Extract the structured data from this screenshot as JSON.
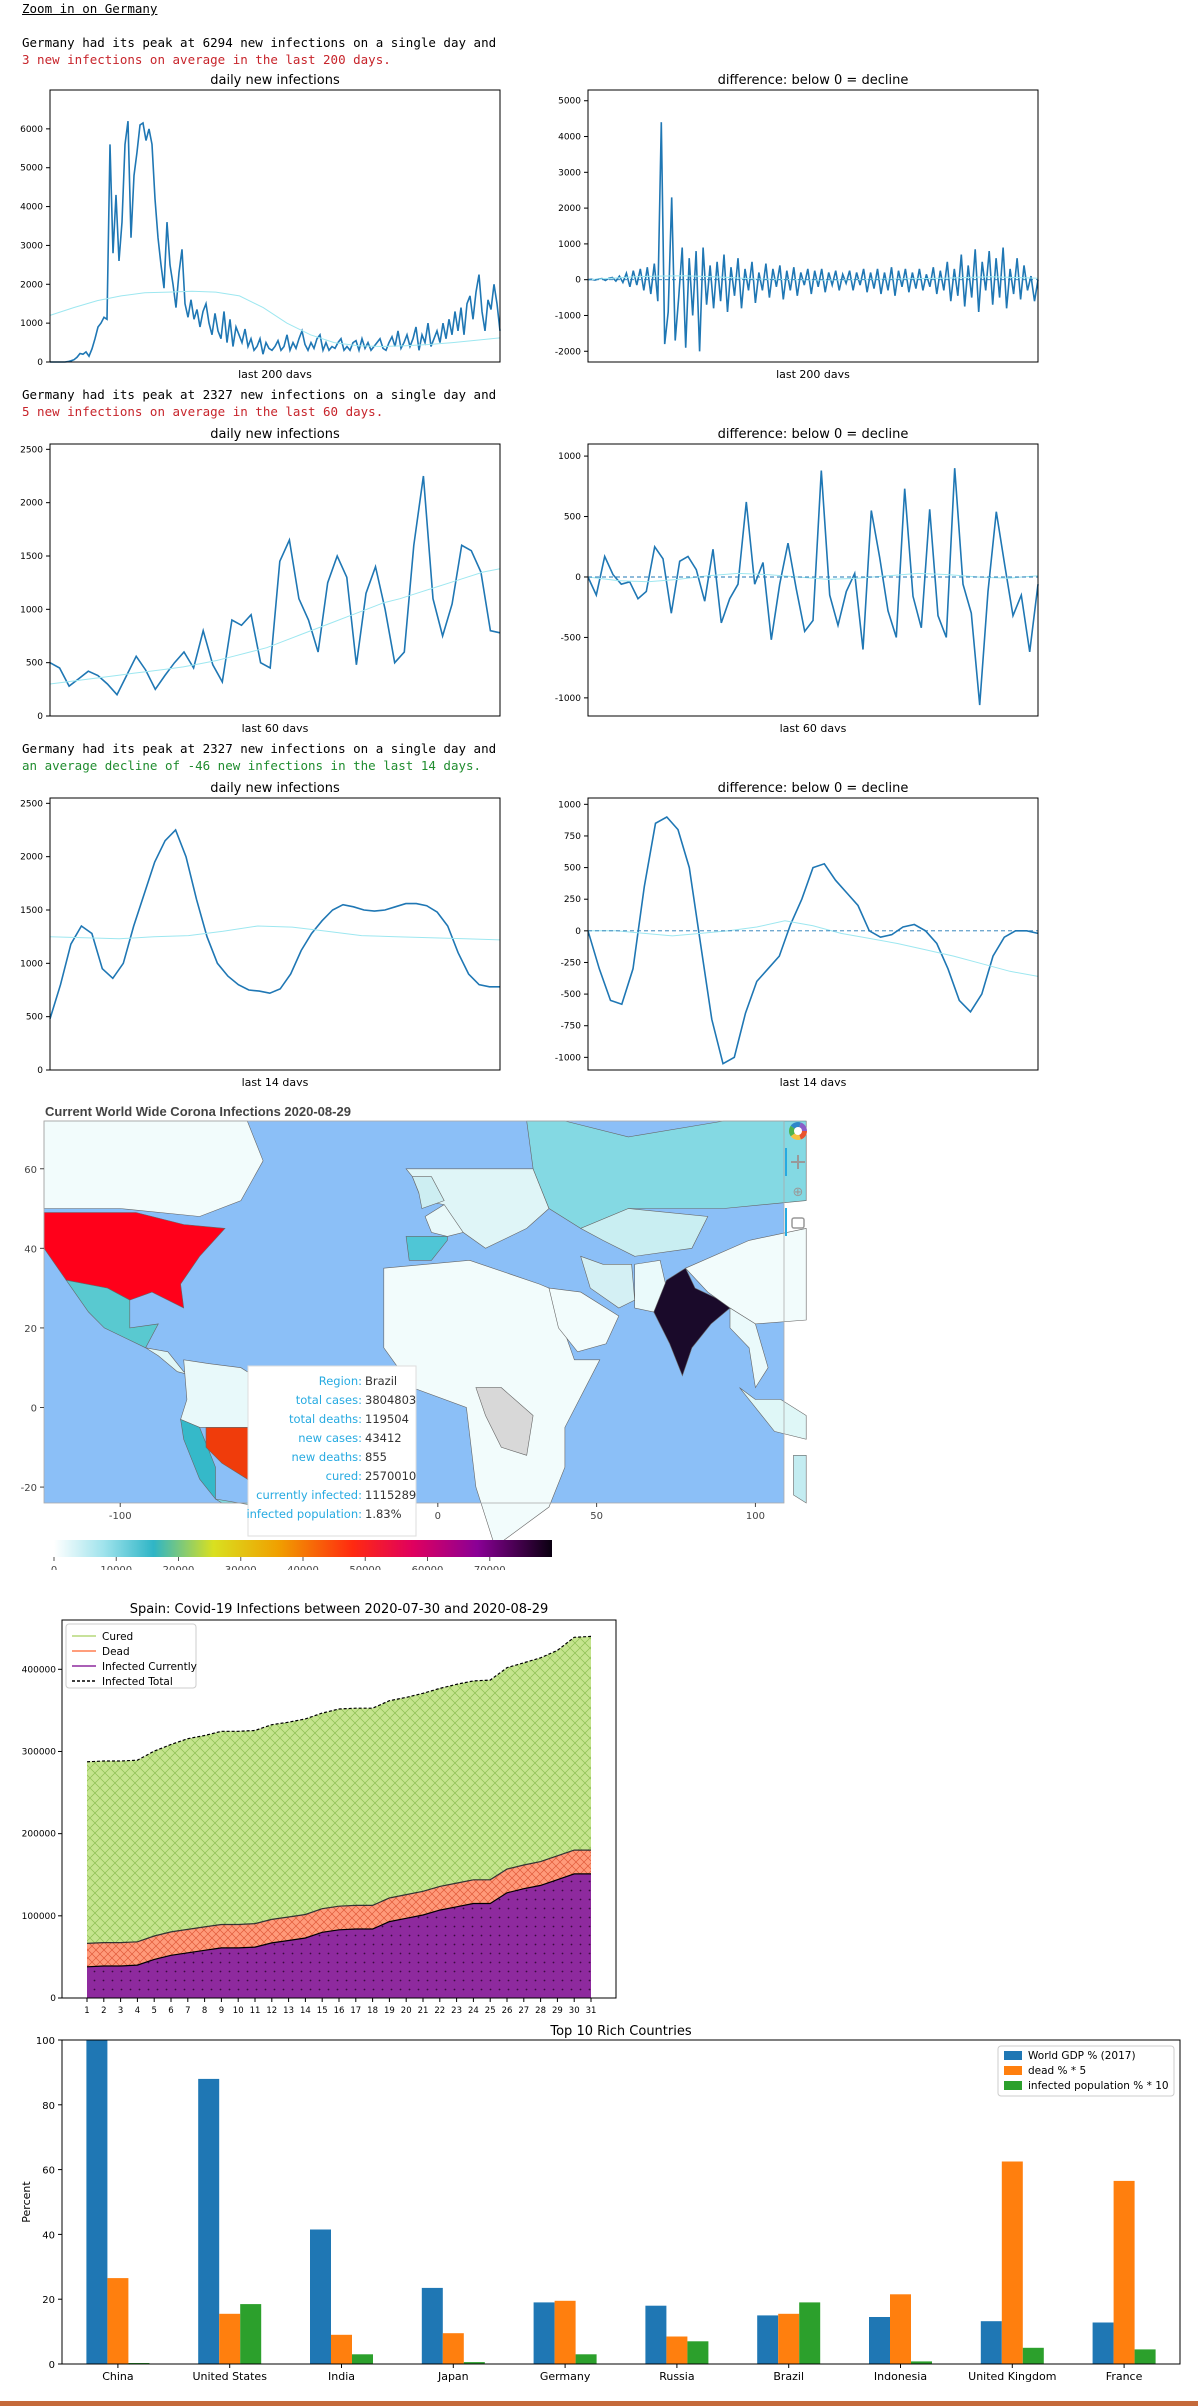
{
  "notebook": {
    "heading": "Zoom in on Germany",
    "blocks": [
      {
        "line1": "Germany had its peak at 6294 new infections on a single day and",
        "line2": "3 new infections on average in the last 200 days.",
        "line2_color": "red"
      },
      {
        "line1": "Germany had its peak at 2327 new infections on a single day and",
        "line2": "5 new infections on average in the last 60 days.",
        "line2_color": "red"
      },
      {
        "line1": "Germany had its peak at 2327 new infections on a single day and",
        "line2": "an average decline of -46 new infections in the last 14 days.",
        "line2_color": "green"
      }
    ]
  },
  "colors": {
    "blue": "#1f77b4",
    "cyan": "#9de7f0",
    "orange": "#ff7f0e",
    "green": "#2ca02c",
    "red_text": "#c7242b",
    "green_text": "#1f8c2e"
  },
  "chart_data": [
    {
      "id": "d200",
      "type": "line",
      "title": "daily new infections",
      "xlabel": "last 200 days",
      "ylabel": "",
      "ylim": [
        0,
        7000
      ],
      "yticks": [
        0,
        1000,
        2000,
        3000,
        4000,
        5000,
        6000
      ],
      "series": [
        {
          "values": [
            0,
            0,
            0,
            0,
            0,
            0,
            10,
            30,
            60,
            120,
            220,
            200,
            260,
            150,
            340,
            600,
            900,
            1000,
            1150,
            1100,
            5600,
            2800,
            4300,
            2600,
            3600,
            5600,
            6200,
            3200,
            4800,
            5400,
            6100,
            6150,
            5700,
            6000,
            5600,
            4200,
            3200,
            2500,
            1900,
            3600,
            2500,
            2000,
            1400,
            2300,
            2900,
            1500,
            1150,
            1600,
            1100,
            1350,
            900,
            1300,
            1500,
            1000,
            700,
            1250,
            800,
            600,
            1300,
            500,
            1100,
            400,
            900,
            700,
            500,
            850,
            400,
            600,
            300,
            400,
            600,
            200,
            500,
            350,
            300,
            400,
            550,
            300,
            400,
            700,
            300,
            500,
            350,
            600,
            800,
            450,
            300,
            500,
            350,
            600,
            700,
            300,
            500,
            300,
            400,
            350,
            500,
            600,
            300,
            400,
            300,
            500,
            550,
            300,
            600,
            350,
            500,
            300,
            400,
            500,
            600,
            350,
            300,
            500,
            650,
            400,
            800,
            350,
            500,
            700,
            400,
            600,
            900,
            300,
            700,
            500,
            1000,
            400,
            600,
            800,
            500,
            1000,
            600,
            1100,
            700,
            1300,
            800,
            1400,
            700,
            1500,
            1700,
            1100,
            1800,
            2250,
            1300,
            800,
            1600,
            1350,
            2000,
            1500,
            800
          ]
        },
        {
          "values": [
            1200,
            1400,
            1580,
            1700,
            1780,
            1800,
            1820,
            1800,
            1700,
            1400,
            1000,
            700,
            500,
            420,
            400,
            420,
            450,
            500,
            560,
            620
          ]
        }
      ]
    },
    {
      "id": "x200",
      "type": "line",
      "title": "difference: below 0 = decline",
      "xlabel": "last 200 days",
      "ylabel": "",
      "ylim": [
        -2300,
        5300
      ],
      "yticks": [
        -2000,
        -1000,
        0,
        1000,
        2000,
        3000,
        4000,
        5000
      ],
      "series": [
        {
          "values": [
            0,
            10,
            -10,
            20,
            30,
            -20,
            40,
            60,
            -40,
            100,
            -80,
            180,
            -200,
            250,
            -150,
            300,
            -300,
            350,
            -400,
            450,
            -600,
            4400,
            -1800,
            -900,
            2300,
            -1700,
            -500,
            900,
            -1900,
            600,
            -1000,
            800,
            -2000,
            900,
            -700,
            400,
            -800,
            500,
            -600,
            700,
            -900,
            350,
            -450,
            600,
            -800,
            300,
            -300,
            500,
            -650,
            200,
            -300,
            450,
            -500,
            300,
            -200,
            400,
            -550,
            250,
            -300,
            350,
            -450,
            200,
            -150,
            300,
            -400,
            250,
            -200,
            300,
            -350,
            200,
            -150,
            250,
            -300,
            150,
            -100,
            250,
            -300,
            200,
            -150,
            300,
            -350,
            200,
            -250,
            300,
            -400,
            200,
            -300,
            350,
            -450,
            250,
            -200,
            300,
            -350,
            200,
            -250,
            300,
            -300,
            150,
            -200,
            350,
            -400,
            250,
            -300,
            500,
            -600,
            300,
            -450,
            700,
            -750,
            400,
            -500,
            850,
            -900,
            500,
            -300,
            800,
            -700,
            600,
            -500,
            900,
            -800,
            300,
            -400,
            600,
            -550,
            400,
            -300,
            100,
            -600,
            0
          ]
        },
        {
          "values": [
            0,
            40,
            80,
            100,
            110,
            90,
            60,
            20,
            10,
            0,
            -10,
            0,
            10,
            20,
            30,
            40,
            60,
            80,
            60,
            40
          ]
        },
        {
          "values": [
            0,
            0
          ]
        }
      ]
    },
    {
      "id": "d60",
      "type": "line",
      "title": "daily new infections",
      "xlabel": "last 60 days",
      "ylabel": "",
      "ylim": [
        0,
        2550
      ],
      "yticks": [
        0,
        500,
        1000,
        1500,
        2000,
        2500
      ],
      "series": [
        {
          "values": [
            500,
            450,
            280,
            350,
            420,
            380,
            300,
            200,
            380,
            560,
            430,
            250,
            380,
            500,
            600,
            450,
            800,
            480,
            320,
            900,
            850,
            950,
            500,
            450,
            1450,
            1650,
            1100,
            900,
            600,
            1250,
            1500,
            1300,
            480,
            1150,
            1400,
            1000,
            500,
            600,
            1600,
            2250,
            1100,
            750,
            1050,
            1600,
            1550,
            1350,
            800,
            780
          ]
        },
        {
          "values": [
            300,
            320,
            340,
            360,
            380,
            400,
            420,
            440,
            460,
            490,
            520,
            560,
            600,
            640,
            700,
            760,
            820,
            880,
            940,
            1000,
            1060,
            1100,
            1150,
            1200,
            1250,
            1300,
            1350,
            1380
          ]
        }
      ]
    },
    {
      "id": "x60",
      "type": "line",
      "title": "difference: below 0 = decline",
      "xlabel": "last 60 days",
      "ylabel": "",
      "ylim": [
        -1150,
        1100
      ],
      "yticks": [
        -1000,
        -500,
        0,
        500,
        1000
      ],
      "series": [
        {
          "values": [
            0,
            -150,
            170,
            20,
            -60,
            -40,
            -180,
            -120,
            250,
            150,
            -300,
            130,
            170,
            60,
            -200,
            230,
            -380,
            -180,
            -60,
            620,
            -60,
            120,
            -520,
            -60,
            280,
            -100,
            -450,
            -360,
            880,
            -150,
            -400,
            -120,
            30,
            -600,
            550,
            160,
            -280,
            -500,
            730,
            -160,
            -420,
            560,
            -320,
            -500,
            900,
            -60,
            -300,
            -1060,
            -120,
            540,
            100,
            -320,
            -150,
            -620,
            -60
          ]
        },
        {
          "values": [
            0,
            -30,
            -40,
            -20,
            10,
            30,
            20,
            0,
            -20,
            -10,
            10,
            30,
            20,
            0,
            -10,
            10
          ]
        },
        {
          "values": [
            0,
            0
          ]
        }
      ]
    },
    {
      "id": "d14",
      "type": "line",
      "title": "daily new infections",
      "xlabel": "last 14 days",
      "ylabel": "",
      "ylim": [
        0,
        2550
      ],
      "yticks": [
        0,
        500,
        1000,
        1500,
        2000,
        2500
      ],
      "series": [
        {
          "values": [
            480,
            800,
            1180,
            1350,
            1280,
            950,
            860,
            1000,
            1350,
            1650,
            1950,
            2150,
            2250,
            2000,
            1600,
            1250,
            1000,
            880,
            800,
            750,
            740,
            720,
            760,
            900,
            1120,
            1280,
            1400,
            1500,
            1550,
            1530,
            1500,
            1490,
            1500,
            1530,
            1560,
            1560,
            1540,
            1480,
            1350,
            1100,
            900,
            800,
            780,
            780
          ]
        },
        {
          "values": [
            1250,
            1240,
            1230,
            1250,
            1260,
            1300,
            1350,
            1340,
            1300,
            1260,
            1250,
            1240,
            1230,
            1220
          ]
        }
      ]
    },
    {
      "id": "x14",
      "type": "line",
      "title": "difference: below 0 = decline",
      "xlabel": "last 14 days",
      "ylabel": "",
      "ylim": [
        -1100,
        1050
      ],
      "yticks": [
        -1000,
        -750,
        -500,
        -250,
        0,
        250,
        500,
        750,
        1000
      ],
      "series": [
        {
          "values": [
            0,
            -300,
            -550,
            -580,
            -300,
            350,
            850,
            900,
            800,
            500,
            -100,
            -700,
            -1050,
            -1000,
            -650,
            -400,
            -300,
            -200,
            50,
            250,
            500,
            530,
            400,
            300,
            200,
            0,
            -50,
            -30,
            30,
            50,
            0,
            -100,
            -300,
            -550,
            -640,
            -500,
            -200,
            -50,
            0,
            0,
            -20
          ]
        },
        {
          "values": [
            0,
            0,
            -20,
            -40,
            -20,
            0,
            30,
            80,
            40,
            -20,
            -60,
            -100,
            -150,
            -200,
            -260,
            -320,
            -360
          ]
        },
        {
          "values": [
            0,
            0
          ]
        }
      ]
    },
    {
      "id": "spain",
      "type": "area",
      "title": "Spain: Covid-19 Infections between 2020-07-30 and 2020-08-29",
      "xlabel": "",
      "ylabel": "",
      "ylim": [
        0,
        460000
      ],
      "yticks": [
        0,
        100000,
        200000,
        300000,
        400000
      ],
      "categories": [
        "1",
        "2",
        "3",
        "4",
        "5",
        "6",
        "7",
        "8",
        "9",
        "10",
        "11",
        "12",
        "13",
        "14",
        "15",
        "16",
        "17",
        "18",
        "19",
        "20",
        "21",
        "22",
        "23",
        "24",
        "25",
        "26",
        "27",
        "28",
        "29",
        "30",
        "31"
      ],
      "legend": [
        "Cured",
        "Dead",
        "Infected Currently",
        "Infected Total"
      ],
      "series": [
        {
          "name": "Infected Currently",
          "values": [
            38000,
            39000,
            39000,
            40000,
            47000,
            52000,
            55000,
            58000,
            61000,
            61000,
            62000,
            67000,
            70000,
            73000,
            80000,
            83000,
            84000,
            84000,
            93000,
            97000,
            101000,
            107000,
            111000,
            115000,
            115000,
            128000,
            133000,
            137000,
            144000,
            151000,
            151000
          ]
        },
        {
          "name": "Dead",
          "values": [
            28400,
            28400,
            28400,
            28400,
            28450,
            28470,
            28500,
            28500,
            28500,
            28500,
            28580,
            28600,
            28600,
            28600,
            28650,
            28700,
            28700,
            28700,
            28750,
            28800,
            28800,
            28800,
            28800,
            28850,
            28850,
            28900,
            28900,
            28950,
            29000,
            29000,
            29000
          ]
        },
        {
          "name": "Cured",
          "values": [
            221000,
            221000,
            221000,
            221000,
            225000,
            228000,
            232000,
            233000,
            235000,
            235000,
            235000,
            237000,
            237000,
            238000,
            238000,
            240000,
            240000,
            240000,
            240000,
            240000,
            241000,
            241000,
            242000,
            242000,
            243000,
            245000,
            246000,
            248000,
            250000,
            259000,
            260000
          ]
        }
      ]
    },
    {
      "id": "rich",
      "type": "bar",
      "title": "Top 10 Rich Countries",
      "xlabel": "",
      "ylabel": "Percent",
      "ylim": [
        0,
        100
      ],
      "yticks": [
        0,
        20,
        40,
        60,
        80,
        100
      ],
      "categories": [
        "China",
        "United States",
        "India",
        "Japan",
        "Germany",
        "Russia",
        "Brazil",
        "Indonesia",
        "United Kingdom",
        "France"
      ],
      "series": [
        {
          "name": "World GDP % (2017)",
          "values": [
            100,
            88,
            41.5,
            23.5,
            19,
            18,
            15,
            14.5,
            13.2,
            12.8
          ]
        },
        {
          "name": "dead % * 5",
          "values": [
            26.5,
            15.5,
            9,
            9.5,
            19.5,
            8.5,
            15.5,
            21.5,
            62.5,
            56.5
          ]
        },
        {
          "name": "infected population % * 10",
          "values": [
            0.3,
            18.5,
            3,
            0.6,
            3,
            7,
            19,
            0.8,
            5,
            4.5
          ]
        }
      ]
    }
  ],
  "map": {
    "title": "Current World Wide Corona Infections 2020-08-29",
    "x_ticks": [
      "-100",
      "-50",
      "0",
      "50",
      "100"
    ],
    "y_ticks": [
      "60",
      "40",
      "20",
      "0",
      "-20"
    ],
    "colorbar_ticks": [
      "0",
      "10000",
      "20000",
      "30000",
      "40000",
      "50000",
      "60000",
      "70000"
    ],
    "tooltip": {
      "labels": [
        "Region:",
        "total cases:",
        "total deaths:",
        "new cases:",
        "new deaths:",
        "cured:",
        "currently infected:",
        "infected population:"
      ],
      "values": [
        "Brazil",
        "3804803",
        "119504",
        "43412",
        "855",
        "2570010",
        "1115289",
        "1.83%"
      ]
    },
    "toolbar": [
      "bokeh-logo-icon",
      "pan-icon",
      "wheel-zoom-icon",
      "hover-icon"
    ]
  }
}
